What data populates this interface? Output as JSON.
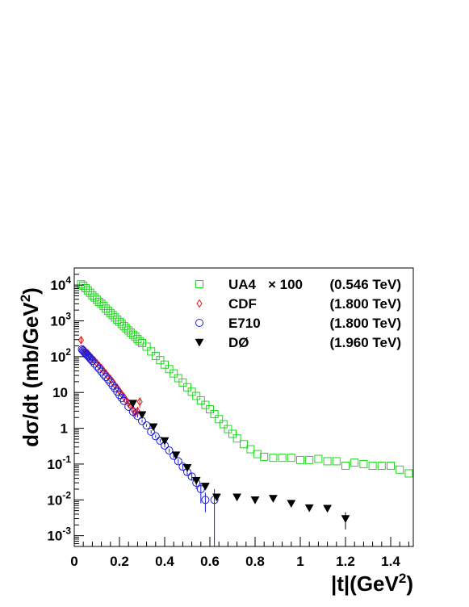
{
  "chart_data": {
    "type": "scatter",
    "title": "",
    "xlabel": "|t|(GeV",
    "xlabel_sup": "2",
    "xlabel_tail": ")",
    "ylabel": "dσ/dt (mb/GeV",
    "ylabel_sup": "2",
    "ylabel_tail": ")",
    "xlim": [
      0,
      1.5
    ],
    "ylim": [
      0.0005,
      30000
    ],
    "yscale": "log",
    "grid": false,
    "legend_position": "top-right",
    "x_ticks": [
      {
        "value": 0,
        "label": "0"
      },
      {
        "value": 0.2,
        "label": "0.2"
      },
      {
        "value": 0.4,
        "label": "0.4"
      },
      {
        "value": 0.6,
        "label": "0.6"
      },
      {
        "value": 0.8,
        "label": "0.8"
      },
      {
        "value": 1.0,
        "label": "1"
      },
      {
        "value": 1.2,
        "label": "1.2"
      },
      {
        "value": 1.4,
        "label": "1.4"
      }
    ],
    "y_ticks": [
      {
        "value": 0.001,
        "base": "10",
        "sup": "-3"
      },
      {
        "value": 0.01,
        "base": "10",
        "sup": "-2"
      },
      {
        "value": 0.1,
        "base": "10",
        "sup": "-1"
      },
      {
        "value": 1,
        "base": "1",
        "sup": ""
      },
      {
        "value": 10,
        "base": "10",
        "sup": ""
      },
      {
        "value": 100,
        "base": "10",
        "sup": "2"
      },
      {
        "value": 1000,
        "base": "10",
        "sup": "3"
      },
      {
        "value": 10000,
        "base": "10",
        "sup": "4"
      }
    ],
    "series": [
      {
        "name": "UA4",
        "label_extra": "× 100",
        "energy": "(0.546 TeV)",
        "marker": "open-square",
        "color": "#1ed81e",
        "x": [
          0.03,
          0.04,
          0.05,
          0.06,
          0.07,
          0.08,
          0.09,
          0.1,
          0.11,
          0.12,
          0.13,
          0.14,
          0.15,
          0.16,
          0.17,
          0.18,
          0.19,
          0.2,
          0.21,
          0.22,
          0.23,
          0.24,
          0.25,
          0.26,
          0.27,
          0.28,
          0.29,
          0.3,
          0.32,
          0.34,
          0.36,
          0.38,
          0.4,
          0.42,
          0.44,
          0.46,
          0.48,
          0.5,
          0.52,
          0.54,
          0.56,
          0.58,
          0.6,
          0.62,
          0.64,
          0.66,
          0.68,
          0.7,
          0.72,
          0.75,
          0.78,
          0.81,
          0.84,
          0.88,
          0.92,
          0.96,
          1.0,
          1.04,
          1.08,
          1.12,
          1.16,
          1.2,
          1.24,
          1.28,
          1.32,
          1.36,
          1.4,
          1.44,
          1.48
        ],
        "y": [
          10500,
          9600,
          8200,
          7100,
          6100,
          5100,
          4500,
          3900,
          3400,
          3000,
          2600,
          2200,
          1900,
          1650,
          1450,
          1250,
          1080,
          940,
          820,
          710,
          620,
          540,
          470,
          410,
          360,
          310,
          270,
          240,
          190,
          140,
          105,
          80,
          60,
          45,
          34,
          25,
          19,
          14,
          10.5,
          8,
          6,
          4.5,
          3.4,
          2.5,
          1.8,
          1.3,
          0.95,
          0.7,
          0.52,
          0.36,
          0.26,
          0.19,
          0.16,
          0.15,
          0.15,
          0.15,
          0.13,
          0.13,
          0.14,
          0.12,
          0.12,
          0.09,
          0.11,
          0.1,
          0.09,
          0.09,
          0.09,
          0.07,
          0.055
        ]
      },
      {
        "name": "CDF",
        "energy": "(1.800 TeV)",
        "marker": "open-diamond",
        "color": "#e01818",
        "x": [
          0.03,
          0.04,
          0.05,
          0.06,
          0.07,
          0.08,
          0.09,
          0.1,
          0.11,
          0.12,
          0.13,
          0.14,
          0.15,
          0.16,
          0.17,
          0.18,
          0.19,
          0.2,
          0.21,
          0.22,
          0.23,
          0.24,
          0.25,
          0.26,
          0.27,
          0.28,
          0.29
        ],
        "y": [
          290,
          160,
          140,
          125,
          105,
          90,
          78,
          66,
          56,
          48,
          40,
          34,
          28,
          24,
          20,
          16,
          13.5,
          11,
          9,
          7.5,
          6,
          5,
          4.2,
          3.3,
          2.8,
          3,
          5.5
        ],
        "yerr_lo": [
          60,
          15,
          10,
          8,
          6,
          5,
          4,
          3,
          2.5,
          2,
          2,
          1.6,
          1.4,
          1.2,
          1,
          1,
          0.9,
          0.8,
          0.8,
          0.7,
          0.7,
          0.8,
          0.8,
          1.2,
          0.8,
          1.0,
          1.8
        ],
        "yerr_hi": [
          60,
          15,
          10,
          8,
          6,
          5,
          4,
          3,
          2.5,
          2,
          2,
          1.6,
          1.4,
          1.2,
          1,
          1,
          0.9,
          0.8,
          0.8,
          0.7,
          0.7,
          0.8,
          0.8,
          1.2,
          0.8,
          1.0,
          1.8
        ]
      },
      {
        "name": "E710",
        "energy": "(1.800 TeV)",
        "marker": "open-circle",
        "color": "#1c1cd8",
        "x": [
          0.034,
          0.038,
          0.042,
          0.046,
          0.05,
          0.054,
          0.058,
          0.062,
          0.066,
          0.07,
          0.075,
          0.08,
          0.09,
          0.1,
          0.11,
          0.12,
          0.13,
          0.14,
          0.15,
          0.16,
          0.17,
          0.18,
          0.19,
          0.2,
          0.21,
          0.22,
          0.24,
          0.26,
          0.28,
          0.3,
          0.32,
          0.34,
          0.36,
          0.38,
          0.4,
          0.42,
          0.44,
          0.46,
          0.48,
          0.5,
          0.52,
          0.54,
          0.56,
          0.58,
          0.62
        ],
        "y": [
          160,
          150,
          140,
          130,
          123,
          116,
          110,
          103,
          97,
          90,
          83,
          76,
          64,
          54,
          46,
          38,
          32,
          27,
          23,
          19,
          15.5,
          13,
          10.5,
          8.5,
          7,
          5.8,
          4,
          2.9,
          2.2,
          1.6,
          1.2,
          0.8,
          0.6,
          0.45,
          0.33,
          0.24,
          0.17,
          0.12,
          0.085,
          0.06,
          0.045,
          0.03,
          0.02,
          0.01,
          0.01
        ],
        "yerr_lo": [
          8,
          7,
          7,
          6,
          6,
          6,
          5,
          5,
          5,
          4,
          4,
          4,
          3,
          3,
          2,
          2,
          2,
          1.5,
          1.2,
          1,
          0.8,
          0.7,
          0.6,
          0.5,
          0.4,
          0.4,
          0.3,
          0.2,
          0.2,
          0.15,
          0.1,
          0.08,
          0.06,
          0.05,
          0.04,
          0.03,
          0.025,
          0.02,
          0.015,
          0.012,
          0.01,
          0.01,
          0.012,
          0.0055,
          0.0095
        ],
        "yerr_hi": [
          8,
          7,
          7,
          6,
          6,
          6,
          5,
          5,
          5,
          4,
          4,
          4,
          3,
          3,
          2,
          2,
          2,
          1.5,
          1.2,
          1,
          0.8,
          0.7,
          0.6,
          0.5,
          0.4,
          0.4,
          0.3,
          0.2,
          0.2,
          0.15,
          0.1,
          0.08,
          0.06,
          0.05,
          0.04,
          0.03,
          0.025,
          0.02,
          0.015,
          0.012,
          0.01,
          0.01,
          0.01,
          0.006,
          0.01
        ]
      },
      {
        "name": "DØ",
        "energy": "(1.960 TeV)",
        "marker": "filled-triangle-down",
        "color": "#000000",
        "x": [
          0.26,
          0.3,
          0.35,
          0.4,
          0.45,
          0.5,
          0.54,
          0.58,
          0.63,
          0.72,
          0.8,
          0.88,
          0.96,
          1.04,
          1.12,
          1.2
        ],
        "y": [
          5,
          2.4,
          1.1,
          0.45,
          0.18,
          0.08,
          0.035,
          0.024,
          0.012,
          0.012,
          0.01,
          0.011,
          0.008,
          0.006,
          0.0058,
          0.003
        ],
        "yerr_lo": [
          0.5,
          0.25,
          0.1,
          0.05,
          0.02,
          0.01,
          0.005,
          0.004,
          0.002,
          0.002,
          0.0015,
          0.0015,
          0.0012,
          0.001,
          0.001,
          0.0015
        ],
        "yerr_hi": [
          0.5,
          0.25,
          0.1,
          0.05,
          0.02,
          0.01,
          0.005,
          0.004,
          0.002,
          0.002,
          0.0015,
          0.0015,
          0.0012,
          0.001,
          0.001,
          0.0015
        ]
      }
    ]
  }
}
